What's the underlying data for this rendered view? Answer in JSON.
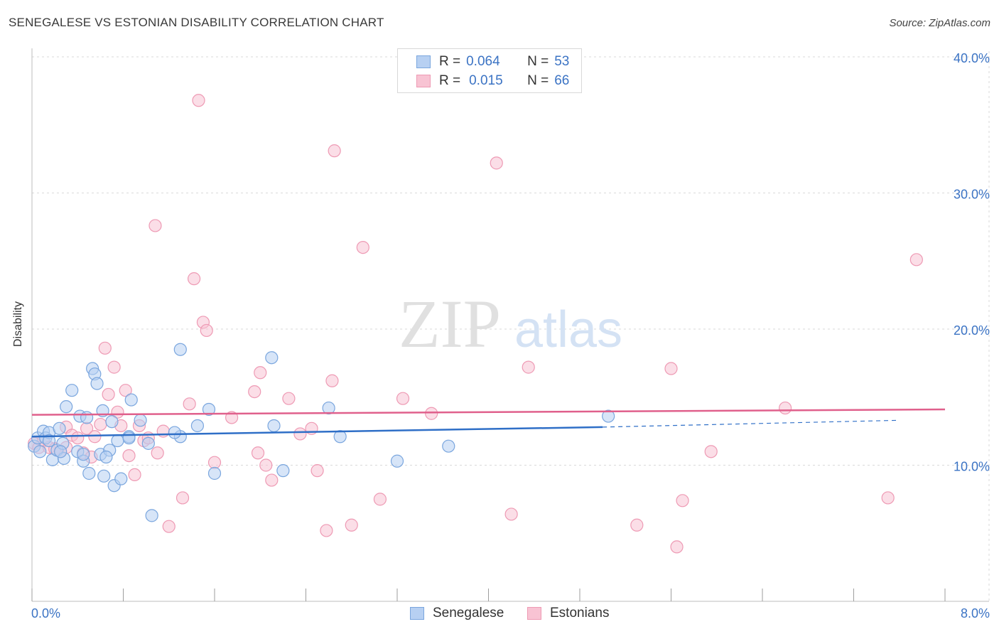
{
  "title": "SENEGALESE VS ESTONIAN DISABILITY CORRELATION CHART",
  "source": "Source: ZipAtlas.com",
  "watermark": {
    "zip": "ZIP",
    "atlas": "atlas"
  },
  "legend": {
    "rows": [
      {
        "r_label": "R =",
        "r_value": "0.064",
        "n_label": "N =",
        "n_value": "53"
      },
      {
        "r_label": "R =",
        "r_value": "0.015",
        "n_label": "N =",
        "n_value": "66"
      }
    ]
  },
  "colors": {
    "blue_fill": "#b7d0f2",
    "blue_stroke": "#7aa6de",
    "blue_line": "#2f6fc7",
    "pink_fill": "#f8c3d3",
    "pink_stroke": "#ee9ab4",
    "pink_line": "#e0608c",
    "accent_text": "#3b73c4",
    "grid": "#d9d9d9"
  },
  "chart_data": {
    "type": "scatter",
    "title": "SENEGALESE VS ESTONIAN DISABILITY CORRELATION CHART",
    "xlabel": "",
    "ylabel": "Disability",
    "xlim": [
      0,
      8
    ],
    "ylim": [
      0,
      40
    ],
    "x_tick_labels": [
      "0.0%",
      "8.0%"
    ],
    "y_ticks": [
      10,
      20,
      30,
      40
    ],
    "y_tick_labels": [
      "10.0%",
      "20.0%",
      "30.0%",
      "40.0%"
    ],
    "grid": true,
    "series": [
      {
        "name": "Senegalese",
        "color": "blue",
        "r": 0.064,
        "n": 53,
        "trend": {
          "x": [
            0.0,
            5.0
          ],
          "y": [
            12.1,
            12.8
          ],
          "dash_to": [
            7.6,
            13.3
          ]
        },
        "points": [
          [
            0.02,
            11.4
          ],
          [
            0.05,
            12.0
          ],
          [
            0.07,
            11.0
          ],
          [
            0.1,
            12.5
          ],
          [
            0.12,
            12.0
          ],
          [
            0.15,
            12.4
          ],
          [
            0.18,
            10.4
          ],
          [
            0.22,
            11.1
          ],
          [
            0.24,
            12.7
          ],
          [
            0.27,
            11.6
          ],
          [
            0.28,
            10.5
          ],
          [
            0.3,
            14.3
          ],
          [
            0.35,
            15.5
          ],
          [
            0.4,
            11.0
          ],
          [
            0.42,
            13.6
          ],
          [
            0.45,
            10.3
          ],
          [
            0.48,
            13.5
          ],
          [
            0.5,
            9.4
          ],
          [
            0.53,
            17.1
          ],
          [
            0.55,
            16.7
          ],
          [
            0.57,
            16.0
          ],
          [
            0.6,
            10.8
          ],
          [
            0.62,
            14.0
          ],
          [
            0.63,
            9.2
          ],
          [
            0.68,
            11.1
          ],
          [
            0.7,
            13.2
          ],
          [
            0.72,
            8.5
          ],
          [
            0.75,
            11.8
          ],
          [
            0.78,
            9.0
          ],
          [
            0.85,
            12.1
          ],
          [
            0.95,
            13.3
          ],
          [
            1.02,
            11.6
          ],
          [
            1.3,
            12.1
          ],
          [
            1.45,
            12.9
          ],
          [
            1.55,
            14.1
          ],
          [
            1.6,
            9.4
          ],
          [
            2.1,
            17.9
          ],
          [
            2.12,
            12.9
          ],
          [
            2.2,
            9.6
          ],
          [
            2.6,
            14.2
          ],
          [
            2.7,
            12.1
          ],
          [
            3.2,
            10.3
          ],
          [
            3.65,
            11.4
          ],
          [
            5.05,
            13.6
          ],
          [
            0.87,
            14.8
          ],
          [
            1.3,
            18.5
          ],
          [
            0.65,
            10.6
          ],
          [
            0.45,
            10.8
          ],
          [
            0.25,
            11.0
          ],
          [
            0.15,
            11.8
          ],
          [
            1.05,
            6.3
          ],
          [
            0.85,
            12.0
          ],
          [
            1.25,
            12.4
          ]
        ]
      },
      {
        "name": "Estonians",
        "color": "pink",
        "r": 0.015,
        "n": 66,
        "trend": {
          "x": [
            0.0,
            8.0
          ],
          "y": [
            13.7,
            14.1
          ]
        },
        "points": [
          [
            0.02,
            11.6
          ],
          [
            0.06,
            11.3
          ],
          [
            0.1,
            11.8
          ],
          [
            0.15,
            11.3
          ],
          [
            0.2,
            11.2
          ],
          [
            0.25,
            11.0
          ],
          [
            0.3,
            12.8
          ],
          [
            0.35,
            12.2
          ],
          [
            0.4,
            12.0
          ],
          [
            0.45,
            10.9
          ],
          [
            0.48,
            12.7
          ],
          [
            0.52,
            10.6
          ],
          [
            0.55,
            12.1
          ],
          [
            0.6,
            13.0
          ],
          [
            0.64,
            18.6
          ],
          [
            0.67,
            15.2
          ],
          [
            0.72,
            17.2
          ],
          [
            0.75,
            13.9
          ],
          [
            0.78,
            12.9
          ],
          [
            0.82,
            15.5
          ],
          [
            0.85,
            10.7
          ],
          [
            0.9,
            9.3
          ],
          [
            0.94,
            12.9
          ],
          [
            0.98,
            11.8
          ],
          [
            1.02,
            12.0
          ],
          [
            1.08,
            27.6
          ],
          [
            1.1,
            10.9
          ],
          [
            1.15,
            12.5
          ],
          [
            1.2,
            5.5
          ],
          [
            1.32,
            7.6
          ],
          [
            1.38,
            14.5
          ],
          [
            1.42,
            23.7
          ],
          [
            1.46,
            36.8
          ],
          [
            1.5,
            20.5
          ],
          [
            1.53,
            19.9
          ],
          [
            1.6,
            10.2
          ],
          [
            1.75,
            13.5
          ],
          [
            1.95,
            15.4
          ],
          [
            1.98,
            10.9
          ],
          [
            2.0,
            16.8
          ],
          [
            2.05,
            10.0
          ],
          [
            2.1,
            8.9
          ],
          [
            2.25,
            14.9
          ],
          [
            2.35,
            12.3
          ],
          [
            2.45,
            12.7
          ],
          [
            2.5,
            9.6
          ],
          [
            2.58,
            5.2
          ],
          [
            2.63,
            16.2
          ],
          [
            2.65,
            33.1
          ],
          [
            2.8,
            5.6
          ],
          [
            2.9,
            26.0
          ],
          [
            3.05,
            7.5
          ],
          [
            3.25,
            14.9
          ],
          [
            3.5,
            13.8
          ],
          [
            4.07,
            32.2
          ],
          [
            4.2,
            6.4
          ],
          [
            4.35,
            17.2
          ],
          [
            5.3,
            5.6
          ],
          [
            5.6,
            17.1
          ],
          [
            5.65,
            4.0
          ],
          [
            5.7,
            7.4
          ],
          [
            5.95,
            11.0
          ],
          [
            6.6,
            14.2
          ],
          [
            7.5,
            7.6
          ],
          [
            7.75,
            25.1
          ],
          [
            0.3,
            11.3
          ]
        ]
      }
    ],
    "legend_names": [
      "Senegalese",
      "Estonians"
    ]
  }
}
